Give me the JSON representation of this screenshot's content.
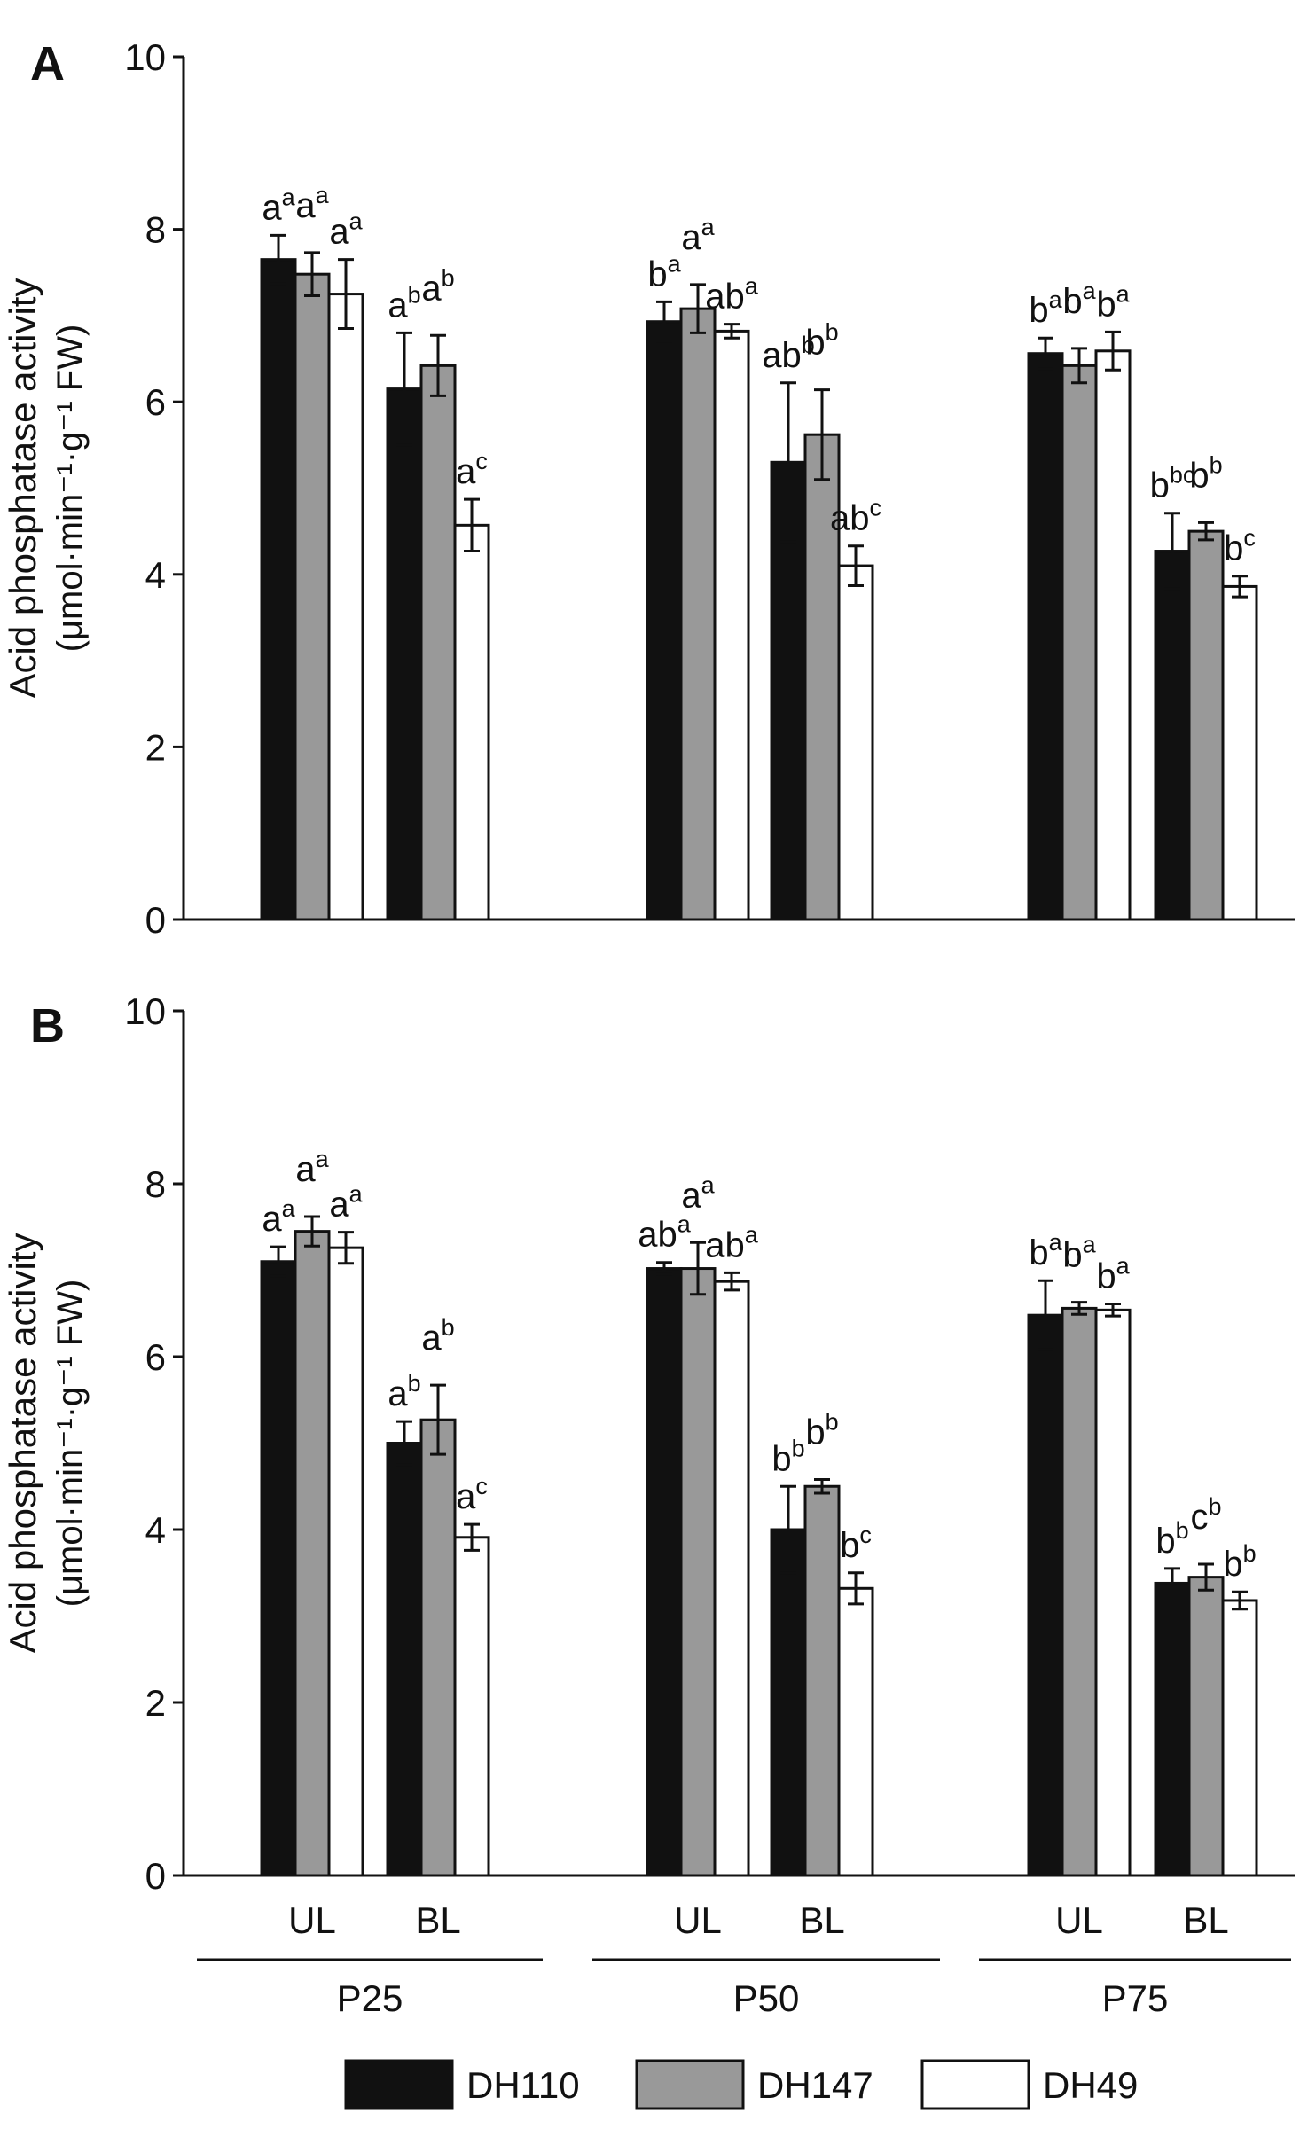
{
  "chart_data": [
    {
      "panel_label": "A",
      "type": "bar",
      "ylabel_line1": "Acid phosphatase activity",
      "ylabel_line2": "(μmol·min⁻¹·g⁻¹ FW)",
      "ylim": [
        0,
        10
      ],
      "yticks": [
        "0",
        "2",
        "4",
        "6",
        "8",
        "10"
      ],
      "groups": [
        {
          "category": "UL",
          "values": [
            7.65,
            7.48,
            7.25
          ],
          "errors": [
            0.28,
            0.25,
            0.4
          ],
          "labels": [
            [
              "a",
              "a"
            ],
            [
              "a",
              "a"
            ],
            [
              "a",
              "a"
            ]
          ]
        },
        {
          "category": "BL",
          "values": [
            6.15,
            6.42,
            4.57
          ],
          "errors": [
            0.65,
            0.35,
            0.3
          ],
          "labels": [
            [
              "a",
              "b"
            ],
            [
              "a",
              "b"
            ],
            [
              "a",
              "c"
            ]
          ]
        },
        {
          "category": "UL",
          "values": [
            6.93,
            7.08,
            6.82
          ],
          "errors": [
            0.23,
            0.28,
            0.08
          ],
          "labels": [
            [
              "b",
              "a"
            ],
            [
              "a",
              "a"
            ],
            [
              "ab",
              "a"
            ]
          ]
        },
        {
          "category": "BL",
          "values": [
            5.3,
            5.62,
            4.1
          ],
          "errors": [
            0.92,
            0.52,
            0.23
          ],
          "labels": [
            [
              "ab",
              "b"
            ],
            [
              "b",
              "b"
            ],
            [
              "ab",
              "c"
            ]
          ]
        },
        {
          "category": "UL",
          "values": [
            6.56,
            6.42,
            6.59
          ],
          "errors": [
            0.18,
            0.2,
            0.22
          ],
          "labels": [
            [
              "b",
              "a"
            ],
            [
              "b",
              "a"
            ],
            [
              "b",
              "a"
            ]
          ]
        },
        {
          "category": "BL",
          "values": [
            4.27,
            4.5,
            3.86
          ],
          "errors": [
            0.44,
            0.1,
            0.12
          ],
          "labels": [
            [
              "b",
              "bc"
            ],
            [
              "b",
              "b"
            ],
            [
              "b",
              "c"
            ]
          ]
        }
      ]
    },
    {
      "panel_label": "B",
      "type": "bar",
      "ylabel_line1": "Acid phosphatase activity",
      "ylabel_line2": "(μmol·min⁻¹·g⁻¹ FW)",
      "ylim": [
        0,
        10
      ],
      "yticks": [
        "0",
        "2",
        "4",
        "6",
        "8",
        "10"
      ],
      "groups": [
        {
          "category": "UL",
          "values": [
            7.1,
            7.45,
            7.26
          ],
          "errors": [
            0.17,
            0.17,
            0.18
          ],
          "labels": [
            [
              "a",
              "a"
            ],
            [
              "a",
              "a"
            ],
            [
              "a",
              "a"
            ]
          ]
        },
        {
          "category": "BL",
          "values": [
            5.0,
            5.27,
            3.91
          ],
          "errors": [
            0.25,
            0.4,
            0.15
          ],
          "labels": [
            [
              "a",
              "b"
            ],
            [
              "a",
              "b"
            ],
            [
              "a",
              "c"
            ]
          ]
        },
        {
          "category": "UL",
          "values": [
            7.02,
            7.02,
            6.87
          ],
          "errors": [
            0.07,
            0.3,
            0.1
          ],
          "labels": [
            [
              "ab",
              "a"
            ],
            [
              "a",
              "a"
            ],
            [
              "ab",
              "a"
            ]
          ]
        },
        {
          "category": "BL",
          "values": [
            4.0,
            4.5,
            3.32
          ],
          "errors": [
            0.5,
            0.08,
            0.18
          ],
          "labels": [
            [
              "b",
              "b"
            ],
            [
              "b",
              "b"
            ],
            [
              "b",
              "c"
            ]
          ]
        },
        {
          "category": "UL",
          "values": [
            6.48,
            6.56,
            6.54
          ],
          "errors": [
            0.4,
            0.07,
            0.07
          ],
          "labels": [
            [
              "b",
              "a"
            ],
            [
              "b",
              "a"
            ],
            [
              "b",
              "a"
            ]
          ]
        },
        {
          "category": "BL",
          "values": [
            3.38,
            3.45,
            3.18
          ],
          "errors": [
            0.17,
            0.15,
            0.1
          ],
          "labels": [
            [
              "b",
              "b"
            ],
            [
              "c",
              "b"
            ],
            [
              "b",
              "b"
            ]
          ]
        }
      ]
    }
  ],
  "periods": [
    "P25",
    "P50",
    "P75"
  ],
  "legend": [
    {
      "name": "DH110",
      "color": "#111111"
    },
    {
      "name": "DH147",
      "color": "#999999"
    },
    {
      "name": "DH49",
      "color": "#ffffff"
    }
  ]
}
